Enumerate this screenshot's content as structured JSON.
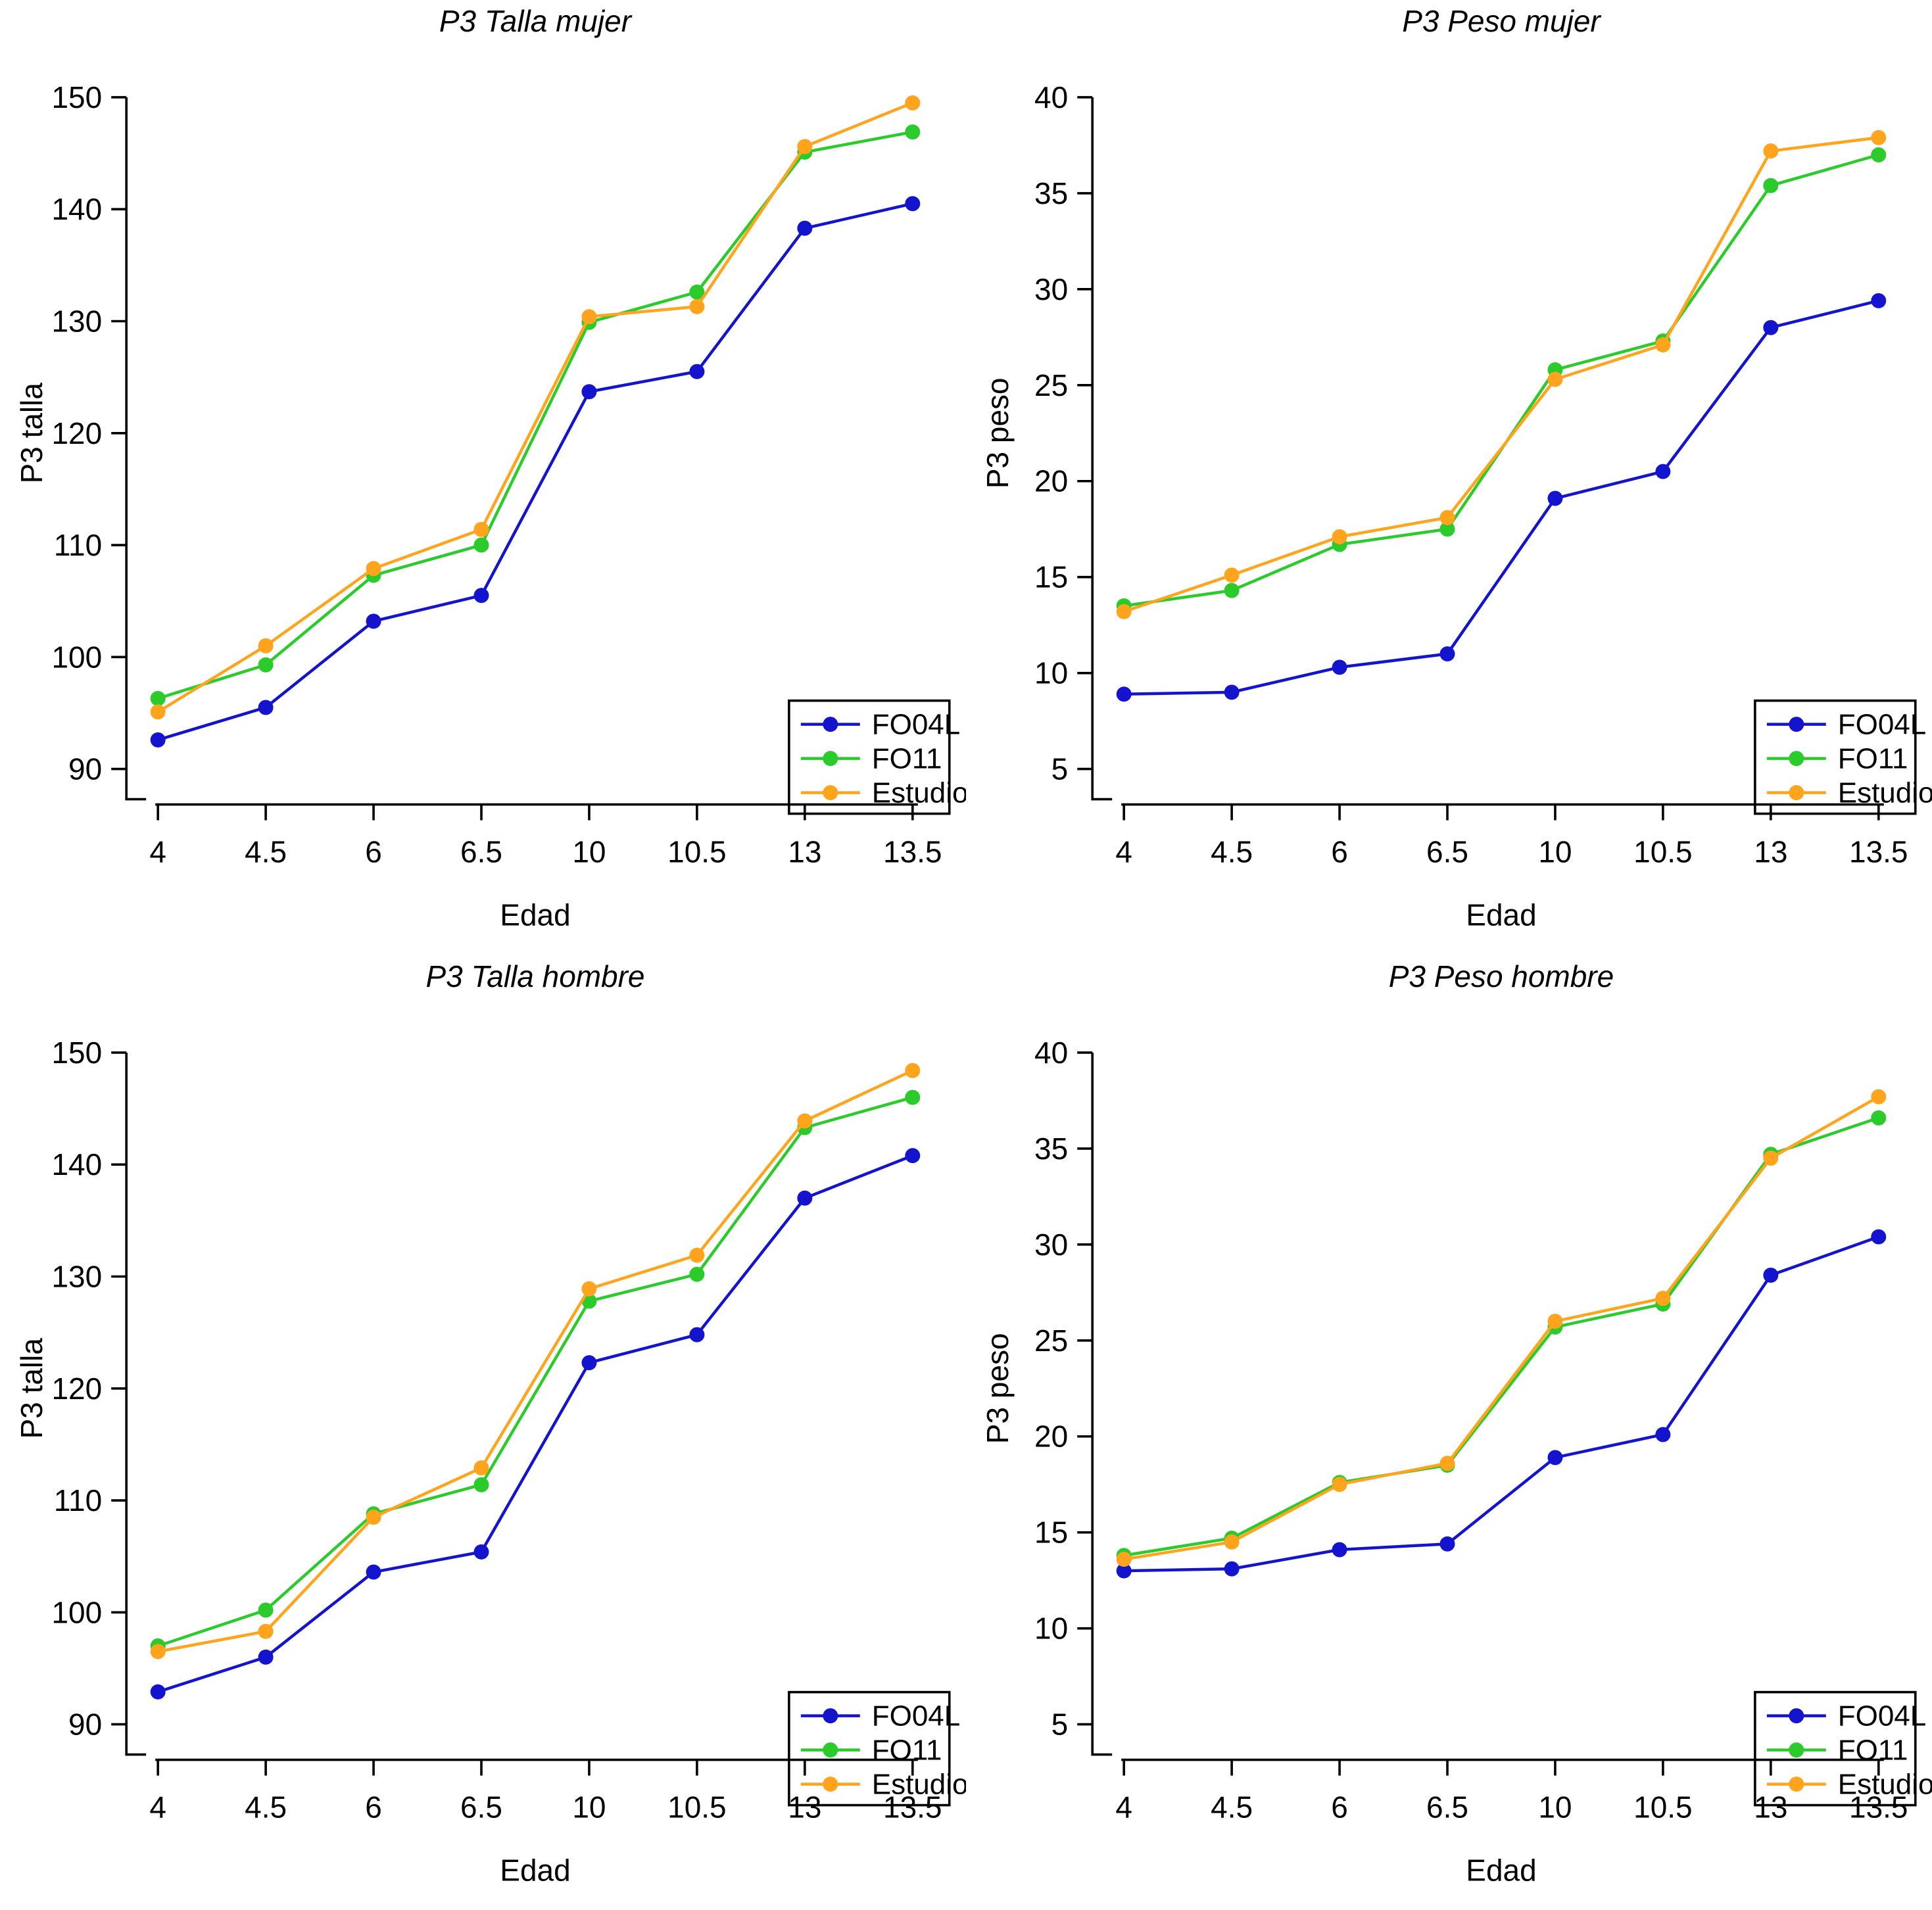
{
  "figure": {
    "background": "#FFFFFF",
    "text_color": "#000000",
    "axis_color": "#000000",
    "series_colors": {
      "FO04L": "#1414CE",
      "FO11": "#2BCB2B",
      "Estudio": "#FFA41C"
    }
  },
  "chart_data": [
    {
      "type": "line",
      "title": "P3 Talla mujer",
      "xlabel": "Edad",
      "ylabel": "P3 talla",
      "categories": [
        "4",
        "4.5",
        "6",
        "6.5",
        "10",
        "10.5",
        "13",
        "13.5"
      ],
      "ylim": [
        90,
        150
      ],
      "yticks": [
        90,
        100,
        110,
        120,
        130,
        140,
        150
      ],
      "grid": false,
      "legend_position": "bottomright",
      "legend_offset_y": 0,
      "legend_entries": [
        "FO04L",
        "FO11",
        "Estudio"
      ],
      "series": [
        {
          "name": "FO04L",
          "color": "#1414CE",
          "values": [
            92.6,
            95.5,
            103.2,
            105.5,
            123.7,
            125.5,
            138.3,
            140.5
          ]
        },
        {
          "name": "FO11",
          "color": "#2BCB2B",
          "values": [
            96.3,
            99.3,
            107.3,
            110.0,
            129.9,
            132.6,
            145.1,
            146.9
          ]
        },
        {
          "name": "Estudio",
          "color": "#FFA41C",
          "values": [
            95.1,
            101.0,
            107.9,
            111.4,
            130.4,
            131.3,
            145.6,
            149.5
          ]
        }
      ]
    },
    {
      "type": "line",
      "title": "P3 Peso mujer",
      "xlabel": "Edad",
      "ylabel": "P3 peso",
      "categories": [
        "4",
        "4.5",
        "6",
        "6.5",
        "10",
        "10.5",
        "13",
        "13.5"
      ],
      "ylim": [
        5,
        40
      ],
      "yticks": [
        5,
        10,
        15,
        20,
        25,
        30,
        35,
        40
      ],
      "grid": false,
      "legend_position": "bottomright",
      "legend_offset_y": 0,
      "legend_entries": [
        "FO04L",
        "FO11",
        "Estudio"
      ],
      "series": [
        {
          "name": "FO04L",
          "color": "#1414CE",
          "values": [
            8.9,
            9.0,
            10.3,
            11.0,
            19.1,
            20.5,
            28.0,
            29.4
          ]
        },
        {
          "name": "FO11",
          "color": "#2BCB2B",
          "values": [
            13.5,
            14.3,
            16.7,
            17.5,
            25.8,
            27.3,
            35.4,
            37.0
          ]
        },
        {
          "name": "Estudio",
          "color": "#FFA41C",
          "values": [
            13.2,
            15.1,
            17.1,
            18.1,
            25.3,
            27.1,
            37.2,
            37.9
          ]
        }
      ]
    },
    {
      "type": "line",
      "title": "P3 Talla hombre",
      "xlabel": "Edad",
      "ylabel": "P3 talla",
      "categories": [
        "4",
        "4.5",
        "6",
        "6.5",
        "10",
        "10.5",
        "13",
        "13.5"
      ],
      "ylim": [
        90,
        150
      ],
      "yticks": [
        90,
        100,
        110,
        120,
        130,
        140,
        150
      ],
      "grid": false,
      "legend_position": "bottomright",
      "legend_offset_y": 55,
      "legend_entries": [
        "FO04L",
        "FO11",
        "Estudio"
      ],
      "series": [
        {
          "name": "FO04L",
          "color": "#1414CE",
          "values": [
            92.9,
            96.0,
            103.6,
            105.4,
            122.3,
            124.8,
            137.0,
            140.8
          ]
        },
        {
          "name": "FO11",
          "color": "#2BCB2B",
          "values": [
            97.0,
            100.2,
            108.8,
            111.4,
            127.8,
            130.2,
            143.3,
            146.0
          ]
        },
        {
          "name": "Estudio",
          "color": "#FFA41C",
          "values": [
            96.5,
            98.3,
            108.5,
            112.9,
            128.9,
            131.9,
            143.9,
            148.4
          ]
        }
      ]
    },
    {
      "type": "line",
      "title": "P3 Peso hombre",
      "xlabel": "Edad",
      "ylabel": "P3 peso",
      "categories": [
        "4",
        "4.5",
        "6",
        "6.5",
        "10",
        "10.5",
        "13",
        "13.5"
      ],
      "ylim": [
        5,
        40
      ],
      "yticks": [
        5,
        10,
        15,
        20,
        25,
        30,
        35,
        40
      ],
      "grid": false,
      "legend_position": "bottomright",
      "legend_offset_y": 55,
      "legend_entries": [
        "FO04L",
        "FO11",
        "Estudio"
      ],
      "series": [
        {
          "name": "FO04L",
          "color": "#1414CE",
          "values": [
            13.0,
            13.1,
            14.1,
            14.4,
            18.9,
            20.1,
            28.4,
            30.4
          ]
        },
        {
          "name": "FO11",
          "color": "#2BCB2B",
          "values": [
            13.8,
            14.7,
            17.6,
            18.5,
            25.7,
            26.9,
            34.7,
            36.6
          ]
        },
        {
          "name": "Estudio",
          "color": "#FFA41C",
          "values": [
            13.6,
            14.5,
            17.5,
            18.6,
            26.0,
            27.2,
            34.5,
            37.7
          ]
        }
      ]
    }
  ]
}
